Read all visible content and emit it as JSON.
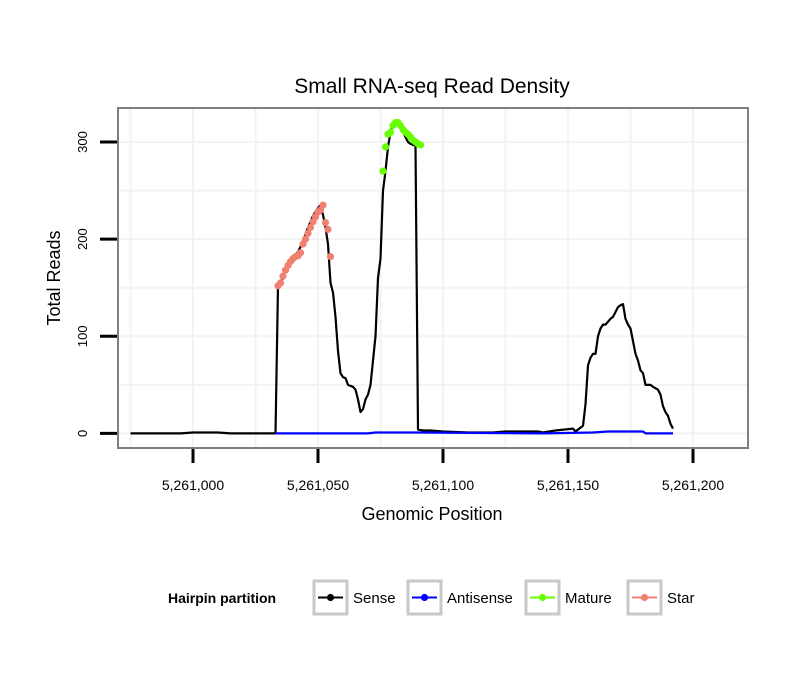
{
  "chart_data": {
    "type": "line",
    "title": "Small RNA-seq Read Density",
    "xlabel": "Genomic Position",
    "ylabel": "Total Reads",
    "xlim": [
      5260970,
      5261222
    ],
    "ylim": [
      -15,
      335
    ],
    "x_ticks": [
      5261000,
      5261050,
      5261100,
      5261150,
      5261200
    ],
    "x_tick_labels": [
      "5,261,000",
      "5,261,050",
      "5,261,100",
      "5,261,150",
      "5,261,200"
    ],
    "y_ticks": [
      0,
      100,
      200,
      300
    ],
    "y_tick_labels": [
      "0",
      "100",
      "200",
      "300"
    ],
    "grid": true,
    "legend": {
      "title": "Hairpin partition",
      "position": "bottom",
      "entries": [
        "Sense",
        "Antisense",
        "Mature",
        "Star"
      ]
    },
    "colors": {
      "Sense": "#000000",
      "Antisense": "#0000ff",
      "Mature": "#66ff00",
      "Star": "#f08070"
    },
    "series": [
      {
        "name": "Sense",
        "style": "line",
        "points": [
          [
            5260975,
            0
          ],
          [
            5260985,
            0
          ],
          [
            5260995,
            0
          ],
          [
            5261000,
            1
          ],
          [
            5261010,
            1
          ],
          [
            5261015,
            0
          ],
          [
            5261033,
            0
          ],
          [
            5261034,
            152
          ],
          [
            5261035,
            155
          ],
          [
            5261036,
            160
          ],
          [
            5261037,
            168
          ],
          [
            5261038,
            175
          ],
          [
            5261039,
            178
          ],
          [
            5261040,
            182
          ],
          [
            5261041,
            184
          ],
          [
            5261042,
            187
          ],
          [
            5261043,
            192
          ],
          [
            5261044,
            198
          ],
          [
            5261045,
            205
          ],
          [
            5261046,
            212
          ],
          [
            5261047,
            218
          ],
          [
            5261048,
            224
          ],
          [
            5261049,
            228
          ],
          [
            5261050,
            232
          ],
          [
            5261051,
            235
          ],
          [
            5261052,
            225
          ],
          [
            5261053,
            212
          ],
          [
            5261054,
            195
          ],
          [
            5261055,
            155
          ],
          [
            5261056,
            145
          ],
          [
            5261057,
            120
          ],
          [
            5261058,
            85
          ],
          [
            5261059,
            62
          ],
          [
            5261060,
            58
          ],
          [
            5261061,
            57
          ],
          [
            5261062,
            50
          ],
          [
            5261064,
            48
          ],
          [
            5261065,
            45
          ],
          [
            5261066,
            35
          ],
          [
            5261067,
            22
          ],
          [
            5261068,
            25
          ],
          [
            5261069,
            35
          ],
          [
            5261070,
            40
          ],
          [
            5261071,
            50
          ],
          [
            5261073,
            100
          ],
          [
            5261074,
            160
          ],
          [
            5261075,
            180
          ],
          [
            5261076,
            250
          ],
          [
            5261077,
            270
          ],
          [
            5261078,
            295
          ],
          [
            5261079,
            310
          ],
          [
            5261080,
            318
          ],
          [
            5261081,
            320
          ],
          [
            5261082,
            318
          ],
          [
            5261083,
            314
          ],
          [
            5261084,
            310
          ],
          [
            5261085,
            305
          ],
          [
            5261086,
            300
          ],
          [
            5261087,
            298
          ],
          [
            5261088,
            297
          ],
          [
            5261089,
            296
          ],
          [
            5261090,
            4
          ],
          [
            5261092,
            3
          ],
          [
            5261095,
            3
          ],
          [
            5261100,
            2
          ],
          [
            5261110,
            1
          ],
          [
            5261120,
            1
          ],
          [
            5261125,
            2
          ],
          [
            5261138,
            2
          ],
          [
            5261140,
            1
          ],
          [
            5261145,
            3
          ],
          [
            5261152,
            5
          ],
          [
            5261153,
            2
          ],
          [
            5261156,
            8
          ],
          [
            5261157,
            30
          ],
          [
            5261158,
            70
          ],
          [
            5261159,
            78
          ],
          [
            5261160,
            82
          ],
          [
            5261161,
            82
          ],
          [
            5261162,
            100
          ],
          [
            5261163,
            108
          ],
          [
            5261164,
            112
          ],
          [
            5261165,
            112
          ],
          [
            5261166,
            115
          ],
          [
            5261167,
            118
          ],
          [
            5261168,
            120
          ],
          [
            5261169,
            125
          ],
          [
            5261170,
            130
          ],
          [
            5261171,
            132
          ],
          [
            5261172,
            133
          ],
          [
            5261173,
            118
          ],
          [
            5261174,
            112
          ],
          [
            5261175,
            108
          ],
          [
            5261176,
            95
          ],
          [
            5261177,
            82
          ],
          [
            5261178,
            75
          ],
          [
            5261179,
            65
          ],
          [
            5261180,
            62
          ],
          [
            5261181,
            50
          ],
          [
            5261183,
            50
          ],
          [
            5261184,
            48
          ],
          [
            5261186,
            45
          ],
          [
            5261187,
            40
          ],
          [
            5261188,
            28
          ],
          [
            5261189,
            22
          ],
          [
            5261190,
            18
          ],
          [
            5261191,
            10
          ],
          [
            5261192,
            5
          ]
        ]
      },
      {
        "name": "Antisense",
        "style": "line",
        "points": [
          [
            5261033,
            0
          ],
          [
            5261070,
            0
          ],
          [
            5261073,
            1
          ],
          [
            5261090,
            1
          ],
          [
            5261140,
            0
          ],
          [
            5261160,
            1
          ],
          [
            5261166,
            2
          ],
          [
            5261180,
            2
          ],
          [
            5261181,
            0
          ],
          [
            5261190,
            0
          ],
          [
            5261192,
            0
          ]
        ]
      },
      {
        "name": "Mature",
        "style": "points",
        "points": [
          [
            5261076,
            270
          ],
          [
            5261077,
            295
          ],
          [
            5261078,
            308
          ],
          [
            5261079,
            310
          ],
          [
            5261080,
            317
          ],
          [
            5261081,
            320
          ],
          [
            5261082,
            320
          ],
          [
            5261083,
            317
          ],
          [
            5261084,
            313
          ],
          [
            5261085,
            310
          ],
          [
            5261086,
            308
          ],
          [
            5261087,
            305
          ],
          [
            5261088,
            302
          ],
          [
            5261089,
            300
          ],
          [
            5261090,
            298
          ],
          [
            5261091,
            297
          ]
        ]
      },
      {
        "name": "Star",
        "style": "points",
        "points": [
          [
            5261034,
            152
          ],
          [
            5261035,
            155
          ],
          [
            5261036,
            162
          ],
          [
            5261037,
            168
          ],
          [
            5261038,
            173
          ],
          [
            5261039,
            177
          ],
          [
            5261040,
            180
          ],
          [
            5261041,
            182
          ],
          [
            5261042,
            183
          ],
          [
            5261043,
            186
          ],
          [
            5261044,
            195
          ],
          [
            5261045,
            200
          ],
          [
            5261046,
            206
          ],
          [
            5261047,
            212
          ],
          [
            5261048,
            218
          ],
          [
            5261049,
            223
          ],
          [
            5261050,
            228
          ],
          [
            5261051,
            230
          ],
          [
            5261052,
            235
          ],
          [
            5261053,
            217
          ],
          [
            5261054,
            210
          ],
          [
            5261055,
            182
          ]
        ]
      }
    ]
  }
}
